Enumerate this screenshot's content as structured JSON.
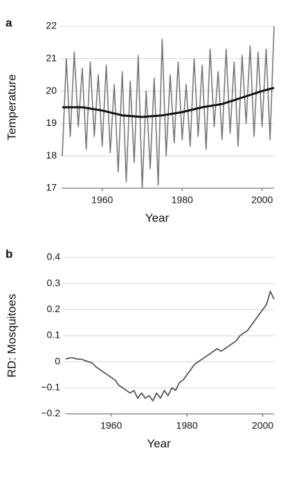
{
  "chart_data": [
    {
      "type": "line",
      "panel": "a",
      "y_label": "Temperature",
      "x_label": "Year",
      "xlim": [
        1950,
        2003
      ],
      "xticks": [
        1960,
        1980,
        2000
      ],
      "ylim": [
        17,
        22
      ],
      "yticks": [
        17,
        18,
        19,
        20,
        21,
        22
      ],
      "grid": true,
      "series": [
        {
          "color": "#777777",
          "x": [
            1950,
            1951,
            1952,
            1953,
            1954,
            1955,
            1956,
            1957,
            1958,
            1959,
            1960,
            1961,
            1962,
            1963,
            1964,
            1965,
            1966,
            1967,
            1968,
            1969,
            1970,
            1971,
            1972,
            1973,
            1974,
            1975,
            1976,
            1977,
            1978,
            1979,
            1980,
            1981,
            1982,
            1983,
            1984,
            1985,
            1986,
            1987,
            1988,
            1989,
            1990,
            1991,
            1992,
            1993,
            1994,
            1995,
            1996,
            1997,
            1998,
            1999,
            2000,
            2001,
            2002,
            2003
          ],
          "values": [
            18.0,
            21.0,
            18.6,
            21.2,
            18.9,
            20.7,
            18.2,
            20.9,
            18.6,
            20.5,
            18.3,
            20.8,
            18.1,
            20.2,
            17.5,
            20.6,
            17.2,
            20.3,
            17.8,
            21.1,
            17.0,
            20.0,
            17.6,
            20.4,
            17.1,
            21.6,
            18.0,
            20.5,
            18.4,
            20.9,
            18.5,
            20.2,
            18.3,
            21.0,
            18.6,
            20.8,
            18.2,
            21.3,
            18.9,
            20.6,
            18.5,
            21.3,
            18.7,
            20.9,
            18.3,
            21.1,
            19.0,
            21.4,
            18.6,
            21.2,
            18.9,
            21.3,
            18.5,
            22.0
          ]
        },
        {
          "color": "#111111",
          "x": [
            1950,
            1955,
            1960,
            1965,
            1970,
            1975,
            1980,
            1985,
            1990,
            1995,
            2000,
            2003
          ],
          "values": [
            19.5,
            19.5,
            19.4,
            19.25,
            19.2,
            19.25,
            19.35,
            19.5,
            19.6,
            19.8,
            20.0,
            20.1
          ]
        }
      ]
    },
    {
      "type": "line",
      "panel": "b",
      "y_label": "RD: Mosquitoes",
      "x_label": "Year",
      "xlim": [
        1948,
        2003
      ],
      "xticks": [
        1960,
        1980,
        2000
      ],
      "ylim": [
        -0.2,
        0.4
      ],
      "yticks": [
        {
          "value": -0.2,
          "label": "−0.2"
        },
        {
          "value": -0.1,
          "label": "−0.1"
        },
        0,
        0.1,
        0.2,
        0.3,
        0.4
      ],
      "grid": true,
      "series": [
        {
          "color": "#444444",
          "x": [
            1948,
            1949,
            1950,
            1951,
            1952,
            1953,
            1954,
            1955,
            1956,
            1957,
            1958,
            1959,
            1960,
            1961,
            1962,
            1963,
            1964,
            1965,
            1966,
            1967,
            1968,
            1969,
            1970,
            1971,
            1972,
            1973,
            1974,
            1975,
            1976,
            1977,
            1978,
            1979,
            1980,
            1981,
            1982,
            1983,
            1984,
            1985,
            1986,
            1987,
            1988,
            1989,
            1990,
            1991,
            1992,
            1993,
            1994,
            1995,
            1996,
            1997,
            1998,
            1999,
            2000,
            2001,
            2002,
            2003
          ],
          "values": [
            0.01,
            0.015,
            0.015,
            0.01,
            0.01,
            0.005,
            0.0,
            -0.005,
            -0.02,
            -0.03,
            -0.04,
            -0.05,
            -0.06,
            -0.07,
            -0.09,
            -0.1,
            -0.11,
            -0.12,
            -0.11,
            -0.14,
            -0.12,
            -0.14,
            -0.13,
            -0.15,
            -0.12,
            -0.14,
            -0.11,
            -0.13,
            -0.1,
            -0.11,
            -0.08,
            -0.07,
            -0.05,
            -0.03,
            -0.01,
            0.0,
            0.01,
            0.02,
            0.03,
            0.04,
            0.05,
            0.04,
            0.05,
            0.06,
            0.07,
            0.08,
            0.1,
            0.11,
            0.12,
            0.14,
            0.16,
            0.18,
            0.2,
            0.22,
            0.27,
            0.24
          ]
        }
      ]
    }
  ]
}
